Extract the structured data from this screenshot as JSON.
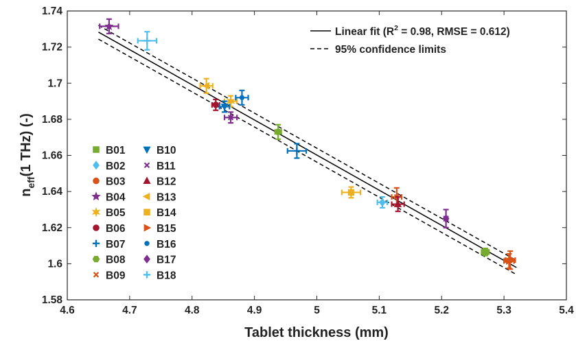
{
  "chart_data": {
    "type": "scatter",
    "xlabel": "Tablet thickness (mm)",
    "ylabel_main": "n",
    "ylabel_sub": "eff",
    "ylabel_rest": "(1 THz) (-)",
    "xlim": [
      4.6,
      5.4
    ],
    "ylim": [
      1.58,
      1.74
    ],
    "x_ticks": [
      4.6,
      4.7,
      4.8,
      4.9,
      5,
      5.1,
      5.2,
      5.3,
      5.4
    ],
    "x_tick_labels": [
      "4.6",
      "4.7",
      "4.8",
      "4.9",
      "5",
      "5.1",
      "5.2",
      "5.3",
      "5.4"
    ],
    "y_ticks": [
      1.58,
      1.6,
      1.62,
      1.64,
      1.66,
      1.68,
      1.7,
      1.72,
      1.74
    ],
    "y_tick_labels": [
      "1.58",
      "1.6",
      "1.62",
      "1.64",
      "1.66",
      "1.68",
      "1.7",
      "1.72",
      "1.74"
    ],
    "grid": false,
    "fit_legend": {
      "placement": "top-right",
      "linear_prefix": "Linear fit (R",
      "linear_sup": "2",
      "linear_suffix": " = 0.98, RMSE = 0.612)",
      "confidence": "95% confidence limits"
    },
    "fit_line": {
      "x": [
        4.65,
        5.32
      ],
      "y": [
        1.7283,
        1.5979
      ]
    },
    "confidence_upper": {
      "x": [
        4.65,
        5.32
      ],
      "y": [
        1.732,
        1.6018
      ]
    },
    "confidence_lower": {
      "x": [
        4.65,
        5.32
      ],
      "y": [
        1.7244,
        1.594
      ]
    },
    "series": [
      {
        "name": "B01",
        "marker": "square",
        "color": "#77AC30",
        "x": 5.27,
        "y": 1.6065,
        "xerr": 0.006,
        "yerr": 0.002
      },
      {
        "name": "B02",
        "marker": "diamond",
        "color": "#4DBEEE",
        "x": 5.105,
        "y": 1.634,
        "xerr": 0.008,
        "yerr": 0.003
      },
      {
        "name": "B03",
        "marker": "circle",
        "color": "#D95319",
        "x": 5.31,
        "y": 1.602,
        "xerr": 0.008,
        "yerr": 0.005
      },
      {
        "name": "B04",
        "marker": "star",
        "color": "#7E2F8E",
        "x": 4.667,
        "y": 1.7315,
        "xerr": 0.015,
        "yerr": 0.004
      },
      {
        "name": "B05",
        "marker": "hexagram",
        "color": "#EDB120",
        "x": 4.862,
        "y": 1.69,
        "xerr": 0.01,
        "yerr": 0.003
      },
      {
        "name": "B06",
        "marker": "circle",
        "color": "#A2142F",
        "x": 4.838,
        "y": 1.688,
        "xerr": 0.006,
        "yerr": 0.003
      },
      {
        "name": "B07",
        "marker": "plus",
        "color": "#0072BD",
        "x": 4.968,
        "y": 1.6625,
        "xerr": 0.015,
        "yerr": 0.004
      },
      {
        "name": "B08",
        "marker": "hexagon",
        "color": "#77AC30",
        "x": 4.938,
        "y": 1.673,
        "xerr": 0.005,
        "yerr": 0.004
      },
      {
        "name": "B09",
        "marker": "x",
        "color": "#D95319",
        "x": 5.128,
        "y": 1.637,
        "xerr": 0.008,
        "yerr": 0.005
      },
      {
        "name": "B10",
        "marker": "triangle-down",
        "color": "#0072BD",
        "x": 4.852,
        "y": 1.687,
        "xerr": 0.008,
        "yerr": 0.003
      },
      {
        "name": "B11",
        "marker": "x",
        "color": "#7E2F8E",
        "x": 4.862,
        "y": 1.681,
        "xerr": 0.01,
        "yerr": 0.003
      },
      {
        "name": "B12",
        "marker": "triangle-up",
        "color": "#A2142F",
        "x": 5.13,
        "y": 1.633,
        "xerr": 0.01,
        "yerr": 0.004
      },
      {
        "name": "B13",
        "marker": "triangle-left",
        "color": "#EDB120",
        "x": 4.823,
        "y": 1.6985,
        "xerr": 0.01,
        "yerr": 0.004
      },
      {
        "name": "B14",
        "marker": "square",
        "color": "#EDB120",
        "x": 5.055,
        "y": 1.6395,
        "xerr": 0.015,
        "yerr": 0.003
      },
      {
        "name": "B15",
        "marker": "triangle-right",
        "color": "#D95319",
        "x": 5.308,
        "y": 1.6015,
        "xerr": 0.008,
        "yerr": 0.004
      },
      {
        "name": "B16",
        "marker": "dot",
        "color": "#0072BD",
        "x": 4.88,
        "y": 1.692,
        "xerr": 0.01,
        "yerr": 0.004
      },
      {
        "name": "B17",
        "marker": "diamond",
        "color": "#7E2F8E",
        "x": 5.207,
        "y": 1.625,
        "xerr": 0.003,
        "yerr": 0.005
      },
      {
        "name": "B18",
        "marker": "plus",
        "color": "#4DBEEE",
        "x": 4.728,
        "y": 1.7235,
        "xerr": 0.015,
        "yerr": 0.005
      }
    ]
  }
}
